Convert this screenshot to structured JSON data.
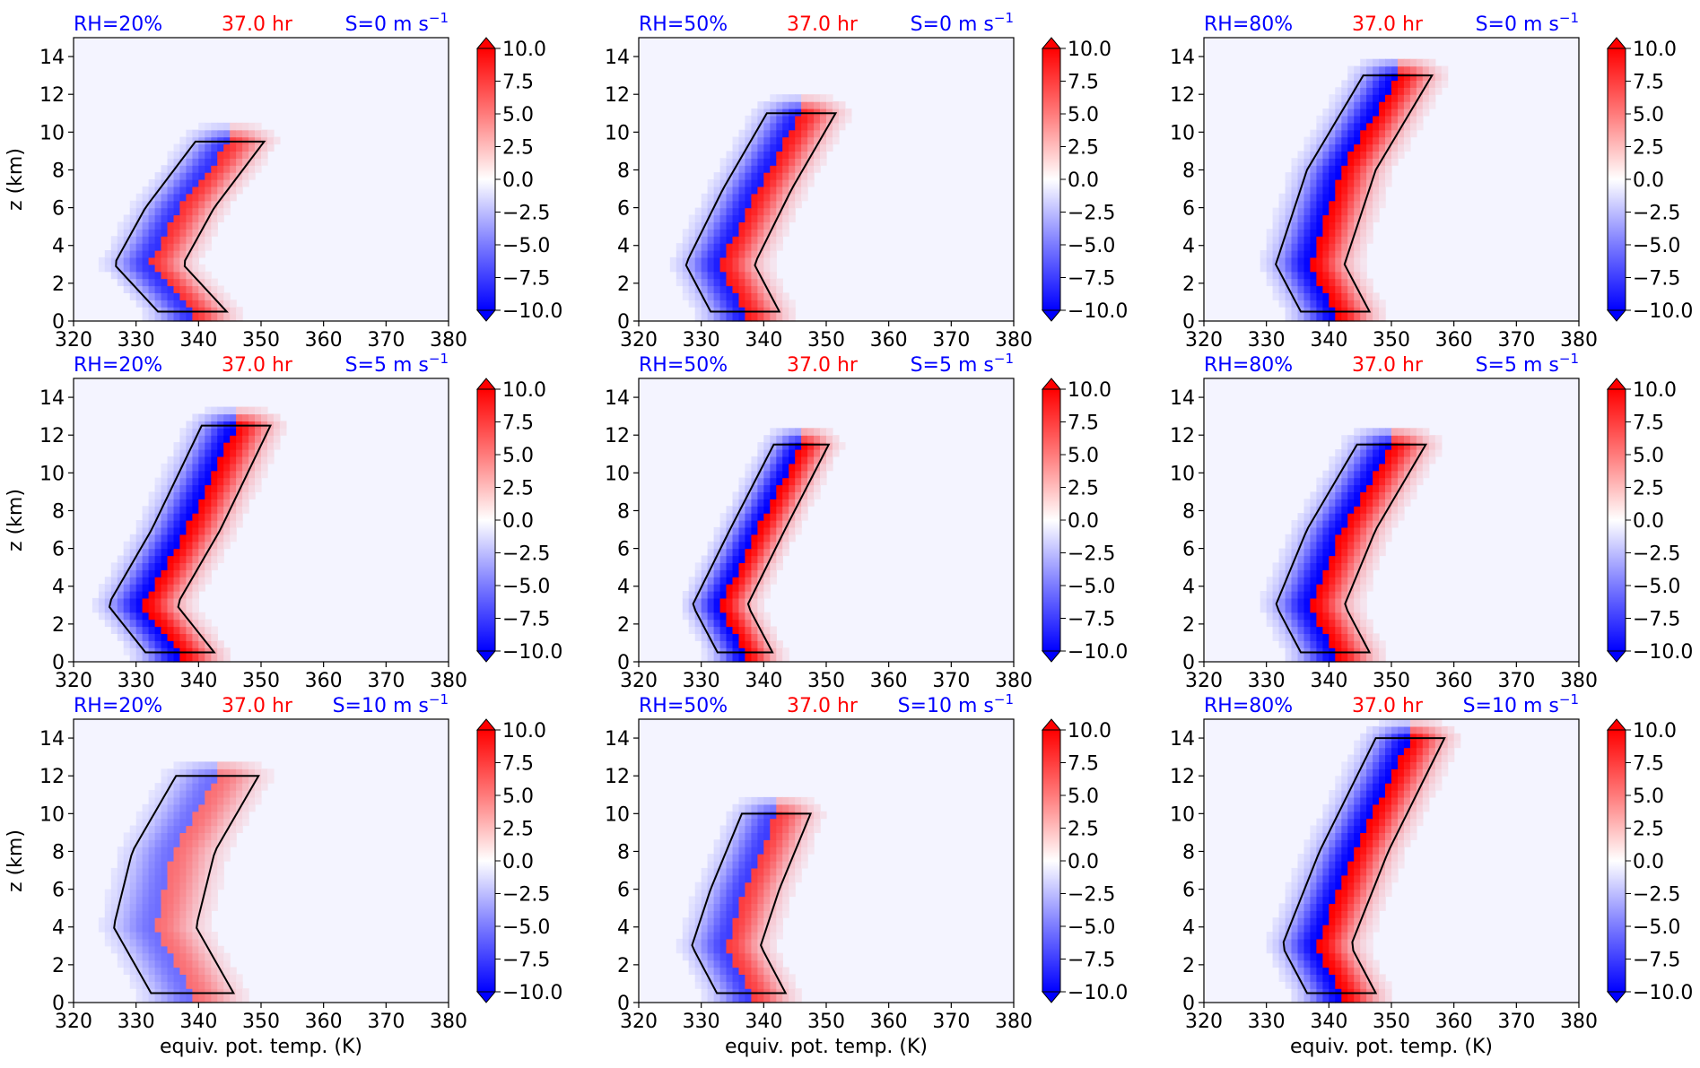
{
  "figure": {
    "xlabel": "equiv. pot. temp. (K)",
    "ylabel": "z (km)",
    "xticks": [
      "320",
      "330",
      "340",
      "350",
      "360",
      "370",
      "380"
    ],
    "yticks": [
      "0",
      "2",
      "4",
      "6",
      "8",
      "10",
      "12",
      "14"
    ],
    "colorbar_ticks": [
      "10.0",
      "7.5",
      "5.0",
      "2.5",
      "0.0",
      "−2.5",
      "−5.0",
      "−7.5",
      "−10.0"
    ],
    "colors": {
      "blue_label": "#0000ff",
      "red_label": "#ff0000",
      "positive": "#ff0000",
      "negative": "#0000ff",
      "neutral": "#f4f4ff"
    }
  },
  "chart_data": [
    {
      "type": "heatmap",
      "row": 0,
      "col": 0,
      "rh": "RH=20%",
      "time": "37.0 hr",
      "shear_value": "S=0 m s",
      "shear_exp": "−1",
      "xlim": [
        320,
        380
      ],
      "ylim": [
        0,
        15
      ],
      "clim": [
        -10,
        10
      ],
      "ridge": [
        [
          339,
          0.5
        ],
        [
          332,
          3
        ],
        [
          337,
          6
        ],
        [
          345,
          9.5
        ]
      ],
      "width": 5,
      "strength": 0.8
    },
    {
      "type": "heatmap",
      "row": 0,
      "col": 1,
      "rh": "RH=50%",
      "time": "37.0 hr",
      "shear_value": "S=0 m s",
      "shear_exp": "−1",
      "xlim": [
        320,
        380
      ],
      "ylim": [
        0,
        15
      ],
      "clim": [
        -10,
        10
      ],
      "ridge": [
        [
          337,
          0.5
        ],
        [
          333,
          3
        ],
        [
          339,
          7
        ],
        [
          346,
          11
        ]
      ],
      "width": 5,
      "strength": 0.9
    },
    {
      "type": "heatmap",
      "row": 0,
      "col": 2,
      "rh": "RH=80%",
      "time": "37.0 hr",
      "shear_value": "S=0 m s",
      "shear_exp": "−1",
      "xlim": [
        320,
        380
      ],
      "ylim": [
        0,
        15
      ],
      "clim": [
        -10,
        10
      ],
      "ridge": [
        [
          341,
          0.5
        ],
        [
          337,
          3
        ],
        [
          342,
          8
        ],
        [
          351,
          13
        ]
      ],
      "width": 5,
      "strength": 1.0
    },
    {
      "type": "heatmap",
      "row": 1,
      "col": 0,
      "rh": "RH=20%",
      "time": "37.0 hr",
      "shear_value": "S=5 m s",
      "shear_exp": "−1",
      "xlim": [
        320,
        380
      ],
      "ylim": [
        0,
        15
      ],
      "clim": [
        -10,
        10
      ],
      "ridge": [
        [
          337,
          0.5
        ],
        [
          331,
          3
        ],
        [
          338,
          7
        ],
        [
          346,
          12.5
        ]
      ],
      "width": 5,
      "strength": 1.0
    },
    {
      "type": "heatmap",
      "row": 1,
      "col": 1,
      "rh": "RH=50%",
      "time": "37.0 hr",
      "shear_value": "S=5 m s",
      "shear_exp": "−1",
      "xlim": [
        320,
        380
      ],
      "ylim": [
        0,
        15
      ],
      "clim": [
        -10,
        10
      ],
      "ridge": [
        [
          337,
          0.5
        ],
        [
          333,
          3
        ],
        [
          339,
          7
        ],
        [
          346,
          11.5
        ]
      ],
      "width": 4,
      "strength": 1.0
    },
    {
      "type": "heatmap",
      "row": 1,
      "col": 2,
      "rh": "RH=80%",
      "time": "37.0 hr",
      "shear_value": "S=5 m s",
      "shear_exp": "−1",
      "xlim": [
        320,
        380
      ],
      "ylim": [
        0,
        15
      ],
      "clim": [
        -10,
        10
      ],
      "ridge": [
        [
          341,
          0.5
        ],
        [
          337,
          3
        ],
        [
          342,
          7
        ],
        [
          350,
          11.5
        ]
      ],
      "width": 5,
      "strength": 1.0
    },
    {
      "type": "heatmap",
      "row": 2,
      "col": 0,
      "rh": "RH=20%",
      "time": "37.0 hr",
      "shear_value": "S=10 m s",
      "shear_exp": "−1",
      "xlim": [
        320,
        380
      ],
      "ylim": [
        0,
        15
      ],
      "clim": [
        -10,
        10
      ],
      "ridge": [
        [
          339,
          0.5
        ],
        [
          333,
          4
        ],
        [
          336,
          8
        ],
        [
          343,
          12
        ]
      ],
      "width": 6,
      "strength": 0.55
    },
    {
      "type": "heatmap",
      "row": 2,
      "col": 1,
      "rh": "RH=50%",
      "time": "37.0 hr",
      "shear_value": "S=10 m s",
      "shear_exp": "−1",
      "xlim": [
        320,
        380
      ],
      "ylim": [
        0,
        15
      ],
      "clim": [
        -10,
        10
      ],
      "ridge": [
        [
          338,
          0.5
        ],
        [
          334,
          3
        ],
        [
          337,
          6
        ],
        [
          342,
          10
        ]
      ],
      "width": 5,
      "strength": 0.75
    },
    {
      "type": "heatmap",
      "row": 2,
      "col": 2,
      "rh": "RH=80%",
      "time": "37.0 hr",
      "shear_value": "S=10 m s",
      "shear_exp": "−1",
      "xlim": [
        320,
        380
      ],
      "ylim": [
        0,
        15
      ],
      "clim": [
        -10,
        10
      ],
      "ridge": [
        [
          342,
          0.5
        ],
        [
          338,
          3
        ],
        [
          344,
          8
        ],
        [
          353,
          14
        ]
      ],
      "width": 5,
      "strength": 1.0
    }
  ]
}
